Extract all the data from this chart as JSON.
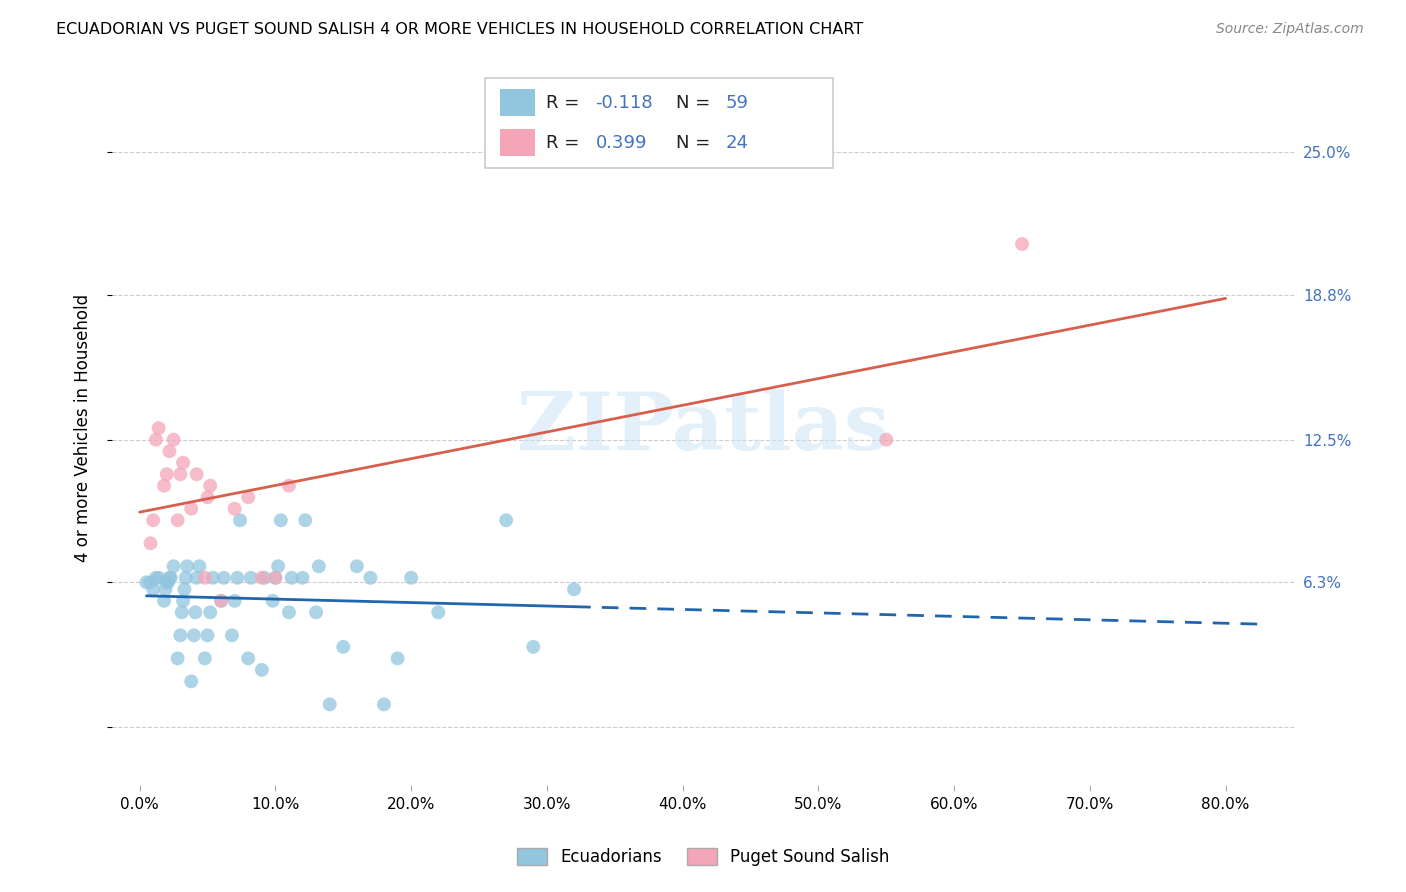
{
  "title": "ECUADORIAN VS PUGET SOUND SALISH 4 OR MORE VEHICLES IN HOUSEHOLD CORRELATION CHART",
  "source": "Source: ZipAtlas.com",
  "ylabel": "4 or more Vehicles in Household",
  "xlabel_ticks": [
    "0.0%",
    "10.0%",
    "20.0%",
    "30.0%",
    "40.0%",
    "50.0%",
    "60.0%",
    "70.0%",
    "80.0%"
  ],
  "xlabel_vals": [
    0.0,
    0.1,
    0.2,
    0.3,
    0.4,
    0.5,
    0.6,
    0.7,
    0.8
  ],
  "ylim": [
    -0.025,
    0.285
  ],
  "xlim": [
    -0.02,
    0.85
  ],
  "ytick_vals": [
    0.0,
    0.063,
    0.125,
    0.188,
    0.25
  ],
  "right_ytick_vals": [
    0.063,
    0.125,
    0.188,
    0.25
  ],
  "right_ytick_labels": [
    "6.3%",
    "12.5%",
    "18.8%",
    "25.0%"
  ],
  "blue_dot_color": "#92c5de",
  "pink_dot_color": "#f4a6b8",
  "blue_line_color": "#2166ac",
  "pink_line_color": "#d6604d",
  "accent_color": "#4472c4",
  "R_blue": -0.118,
  "N_blue": 59,
  "R_pink": 0.399,
  "N_pink": 24,
  "legend_label_blue": "Ecuadorians",
  "legend_label_pink": "Puget Sound Salish",
  "watermark": "ZIPatlas",
  "blue_scatter_x": [
    0.005,
    0.008,
    0.01,
    0.012,
    0.014,
    0.018,
    0.019,
    0.02,
    0.021,
    0.022,
    0.023,
    0.025,
    0.028,
    0.03,
    0.031,
    0.032,
    0.033,
    0.034,
    0.035,
    0.038,
    0.04,
    0.041,
    0.042,
    0.044,
    0.048,
    0.05,
    0.052,
    0.054,
    0.06,
    0.062,
    0.068,
    0.07,
    0.072,
    0.074,
    0.08,
    0.082,
    0.09,
    0.092,
    0.098,
    0.1,
    0.102,
    0.104,
    0.11,
    0.112,
    0.12,
    0.122,
    0.13,
    0.132,
    0.14,
    0.15,
    0.16,
    0.17,
    0.18,
    0.19,
    0.2,
    0.22,
    0.27,
    0.29,
    0.32
  ],
  "blue_scatter_y": [
    0.063,
    0.063,
    0.06,
    0.065,
    0.065,
    0.055,
    0.06,
    0.063,
    0.063,
    0.065,
    0.065,
    0.07,
    0.03,
    0.04,
    0.05,
    0.055,
    0.06,
    0.065,
    0.07,
    0.02,
    0.04,
    0.05,
    0.065,
    0.07,
    0.03,
    0.04,
    0.05,
    0.065,
    0.055,
    0.065,
    0.04,
    0.055,
    0.065,
    0.09,
    0.03,
    0.065,
    0.025,
    0.065,
    0.055,
    0.065,
    0.07,
    0.09,
    0.05,
    0.065,
    0.065,
    0.09,
    0.05,
    0.07,
    0.01,
    0.035,
    0.07,
    0.065,
    0.01,
    0.03,
    0.065,
    0.05,
    0.09,
    0.035,
    0.06
  ],
  "pink_scatter_x": [
    0.008,
    0.01,
    0.012,
    0.014,
    0.018,
    0.02,
    0.022,
    0.025,
    0.028,
    0.03,
    0.032,
    0.038,
    0.042,
    0.048,
    0.05,
    0.052,
    0.06,
    0.07,
    0.08,
    0.09,
    0.1,
    0.11,
    0.55,
    0.65
  ],
  "pink_scatter_y": [
    0.08,
    0.09,
    0.125,
    0.13,
    0.105,
    0.11,
    0.12,
    0.125,
    0.09,
    0.11,
    0.115,
    0.095,
    0.11,
    0.065,
    0.1,
    0.105,
    0.055,
    0.095,
    0.1,
    0.065,
    0.065,
    0.105,
    0.125,
    0.21
  ]
}
